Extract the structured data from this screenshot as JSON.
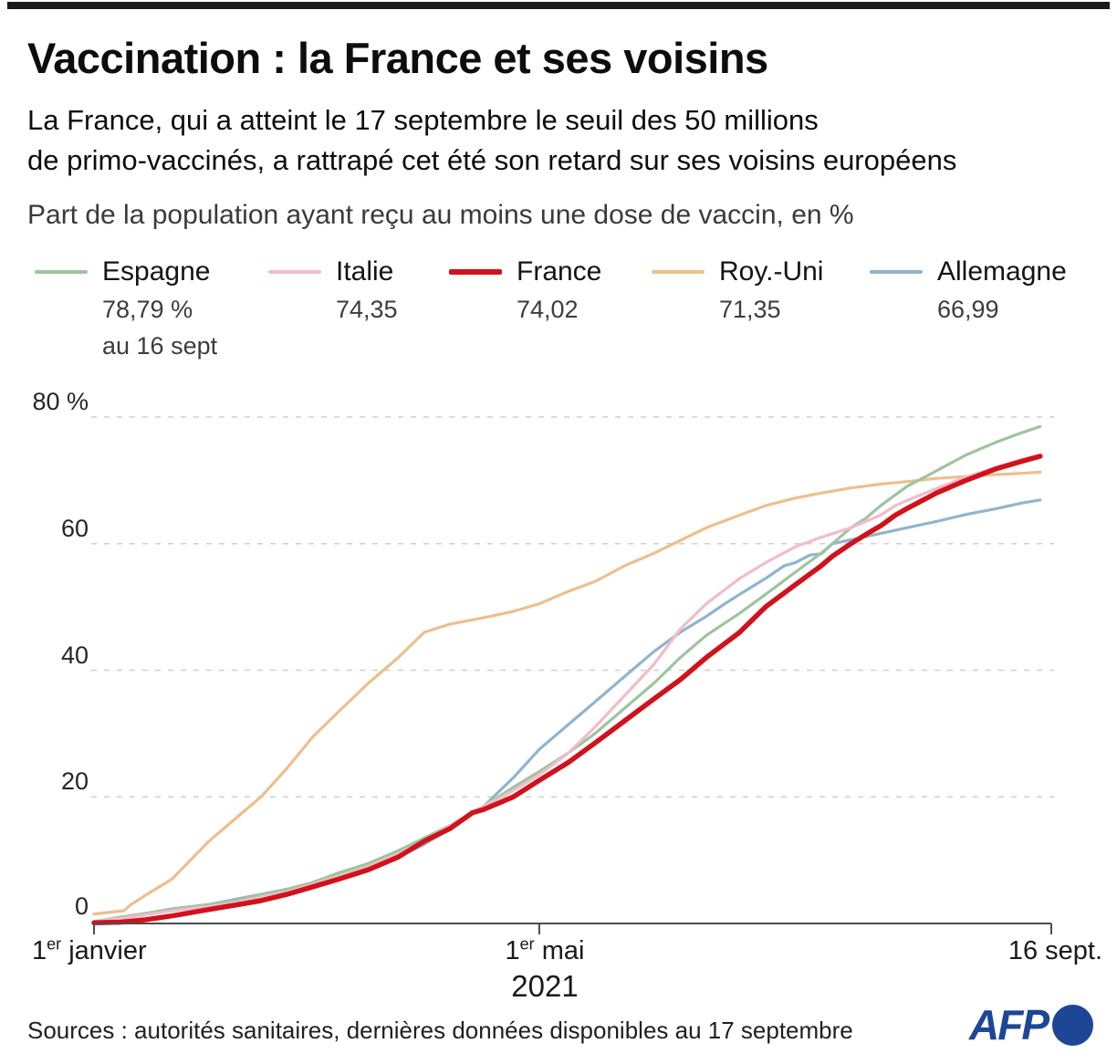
{
  "header": {
    "title": "Vaccination : la France et ses voisins",
    "subtitle_line1": "La France, qui a atteint le 17 septembre le seuil des 50 millions",
    "subtitle_line2": "de primo-vaccinés, a rattrapé cet été son retard sur ses voisins européens",
    "measure_label": "Part de la population ayant reçu au moins une dose de vaccin, en %"
  },
  "legend": {
    "items": [
      {
        "label": "Espagne",
        "value": "78,79 %",
        "note": "au 16 sept"
      },
      {
        "label": "Italie",
        "value": "74,35",
        "note": ""
      },
      {
        "label": "France",
        "value": "74,02",
        "note": ""
      },
      {
        "label": "Roy.-Uni",
        "value": "71,35",
        "note": ""
      },
      {
        "label": "Allemagne",
        "value": "66,99",
        "note": ""
      }
    ]
  },
  "y_axis": {
    "t80": "80 %",
    "t60": "60",
    "t40": "40",
    "t20": "20",
    "t0": "0"
  },
  "x_axis": {
    "jan_num": "1",
    "jan_sup": "er",
    "jan_rest": " janvier",
    "mai_num": "1",
    "mai_sup": "er",
    "mai_rest": " mai",
    "year": "2021",
    "sept": "16 sept."
  },
  "footer": {
    "sources": "Sources : autorités sanitaires, dernières données disponibles au 17 septembre",
    "logo_text": "AFP",
    "logo_color": "#1d4796"
  },
  "chart_data": {
    "type": "line",
    "title": "Part de la population ayant reçu au moins une dose de vaccin, en %",
    "x_unit": "days since 1 January 2021",
    "x_range_days": [
      0,
      258
    ],
    "x_tick_days": [
      0,
      120,
      258
    ],
    "x_tick_labels": [
      "1er janvier",
      "1er mai",
      "16 sept."
    ],
    "ylim": [
      0,
      80
    ],
    "y_ticks": [
      0,
      20,
      40,
      60,
      80
    ],
    "grid": "dashed-horizontal",
    "legend_position": "top",
    "series": [
      {
        "name": "Espagne",
        "color": "#9fc49e",
        "width": 3.2,
        "z": 3,
        "final_value": 78.79,
        "points": [
          [
            0,
            0.3
          ],
          [
            7,
            1
          ],
          [
            14,
            1.6
          ],
          [
            21,
            2.2
          ],
          [
            31,
            3
          ],
          [
            38,
            3.6
          ],
          [
            45,
            4.5
          ],
          [
            52,
            5.4
          ],
          [
            59,
            6.5
          ],
          [
            66,
            8
          ],
          [
            74,
            9.5
          ],
          [
            82,
            11.5
          ],
          [
            89,
            13.5
          ],
          [
            96,
            15.5
          ],
          [
            105,
            18.5
          ],
          [
            113,
            21.5
          ],
          [
            120,
            24
          ],
          [
            128,
            27
          ],
          [
            135,
            30
          ],
          [
            143,
            34
          ],
          [
            151,
            38
          ],
          [
            158,
            42
          ],
          [
            165,
            45.5
          ],
          [
            174,
            49
          ],
          [
            181,
            52
          ],
          [
            189,
            55.5
          ],
          [
            196,
            58.5
          ],
          [
            200,
            60.5
          ],
          [
            204,
            62.5
          ],
          [
            208,
            64
          ],
          [
            212,
            66
          ],
          [
            219,
            69
          ],
          [
            227,
            71.5
          ],
          [
            235,
            74
          ],
          [
            243,
            76
          ],
          [
            250,
            77.5
          ],
          [
            255,
            78.5
          ]
        ]
      },
      {
        "name": "Italie",
        "color": "#f2bcca",
        "width": 3.2,
        "z": 4,
        "final_value": 74.35,
        "points": [
          [
            0,
            0.3
          ],
          [
            7,
            0.8
          ],
          [
            14,
            1.4
          ],
          [
            21,
            2
          ],
          [
            31,
            2.7
          ],
          [
            38,
            3.3
          ],
          [
            45,
            4.2
          ],
          [
            52,
            5
          ],
          [
            59,
            6.2
          ],
          [
            66,
            7.5
          ],
          [
            74,
            9
          ],
          [
            82,
            11
          ],
          [
            89,
            13
          ],
          [
            96,
            15.5
          ],
          [
            105,
            18.5
          ],
          [
            113,
            21
          ],
          [
            120,
            23.5
          ],
          [
            128,
            27
          ],
          [
            135,
            31
          ],
          [
            143,
            36
          ],
          [
            151,
            41
          ],
          [
            158,
            46.5
          ],
          [
            165,
            50.5
          ],
          [
            174,
            54.5
          ],
          [
            181,
            57
          ],
          [
            189,
            59.5
          ],
          [
            196,
            61
          ],
          [
            204,
            62.5
          ],
          [
            212,
            64.5
          ],
          [
            216,
            66
          ],
          [
            219,
            66.8
          ],
          [
            227,
            68.7
          ],
          [
            235,
            70.5
          ],
          [
            243,
            72
          ],
          [
            250,
            73.3
          ],
          [
            255,
            74
          ]
        ]
      },
      {
        "name": "France",
        "color": "#d1121b",
        "width": 5.5,
        "z": 5,
        "final_value": 74.02,
        "points": [
          [
            0,
            0.1
          ],
          [
            7,
            0.2
          ],
          [
            14,
            0.6
          ],
          [
            21,
            1.2
          ],
          [
            31,
            2.2
          ],
          [
            38,
            2.9
          ],
          [
            45,
            3.6
          ],
          [
            52,
            4.6
          ],
          [
            59,
            5.8
          ],
          [
            66,
            7
          ],
          [
            74,
            8.5
          ],
          [
            82,
            10.5
          ],
          [
            89,
            13
          ],
          [
            96,
            15
          ],
          [
            102,
            17.5
          ],
          [
            105,
            18
          ],
          [
            113,
            20
          ],
          [
            120,
            22.6
          ],
          [
            128,
            25.5
          ],
          [
            135,
            28.5
          ],
          [
            143,
            32
          ],
          [
            151,
            35.5
          ],
          [
            158,
            38.5
          ],
          [
            165,
            42
          ],
          [
            174,
            46
          ],
          [
            181,
            50
          ],
          [
            189,
            53.5
          ],
          [
            196,
            56.5
          ],
          [
            199,
            58
          ],
          [
            204,
            60
          ],
          [
            209,
            61.8
          ],
          [
            212,
            62.8
          ],
          [
            216,
            64.5
          ],
          [
            219,
            65.5
          ],
          [
            227,
            68
          ],
          [
            235,
            70
          ],
          [
            243,
            71.8
          ],
          [
            250,
            73
          ],
          [
            255,
            73.8
          ]
        ]
      },
      {
        "name": "Roy.-Uni",
        "color": "#edbf8d",
        "width": 3.2,
        "z": 2,
        "final_value": 71.35,
        "points": [
          [
            0,
            1.5
          ],
          [
            8,
            2
          ],
          [
            10,
            3
          ],
          [
            14,
            4.5
          ],
          [
            21,
            7
          ],
          [
            31,
            13
          ],
          [
            38,
            16.5
          ],
          [
            45,
            20
          ],
          [
            52,
            24.5
          ],
          [
            59,
            29.5
          ],
          [
            66,
            33.5
          ],
          [
            74,
            38
          ],
          [
            82,
            42
          ],
          [
            89,
            46
          ],
          [
            96,
            47.3
          ],
          [
            105,
            48.3
          ],
          [
            113,
            49.3
          ],
          [
            120,
            50.5
          ],
          [
            128,
            52.5
          ],
          [
            135,
            54
          ],
          [
            143,
            56.5
          ],
          [
            151,
            58.5
          ],
          [
            158,
            60.5
          ],
          [
            165,
            62.5
          ],
          [
            174,
            64.5
          ],
          [
            181,
            66
          ],
          [
            189,
            67.2
          ],
          [
            196,
            68
          ],
          [
            204,
            68.8
          ],
          [
            212,
            69.4
          ],
          [
            219,
            69.8
          ],
          [
            227,
            70.3
          ],
          [
            235,
            70.6
          ],
          [
            243,
            70.9
          ],
          [
            250,
            71.1
          ],
          [
            255,
            71.3
          ]
        ]
      },
      {
        "name": "Allemagne",
        "color": "#92b4cd",
        "width": 3.2,
        "z": 1,
        "final_value": 66.99,
        "points": [
          [
            0,
            0.2
          ],
          [
            7,
            0.8
          ],
          [
            14,
            1.6
          ],
          [
            21,
            2.3
          ],
          [
            31,
            3
          ],
          [
            38,
            3.8
          ],
          [
            45,
            4.6
          ],
          [
            52,
            5.4
          ],
          [
            59,
            6.3
          ],
          [
            66,
            7.5
          ],
          [
            74,
            9
          ],
          [
            82,
            10.5
          ],
          [
            89,
            12.5
          ],
          [
            96,
            15
          ],
          [
            105,
            18.5
          ],
          [
            113,
            23
          ],
          [
            120,
            27.5
          ],
          [
            128,
            31.5
          ],
          [
            135,
            35
          ],
          [
            143,
            39
          ],
          [
            151,
            43
          ],
          [
            158,
            46
          ],
          [
            165,
            48.5
          ],
          [
            170,
            50.5
          ],
          [
            174,
            52
          ],
          [
            181,
            54.5
          ],
          [
            186,
            56.5
          ],
          [
            189,
            57
          ],
          [
            193,
            58.2
          ],
          [
            196,
            58.4
          ],
          [
            199,
            60
          ],
          [
            204,
            60.6
          ],
          [
            212,
            61.6
          ],
          [
            219,
            62.5
          ],
          [
            227,
            63.5
          ],
          [
            235,
            64.6
          ],
          [
            243,
            65.5
          ],
          [
            250,
            66.4
          ],
          [
            255,
            66.9
          ]
        ]
      }
    ]
  }
}
